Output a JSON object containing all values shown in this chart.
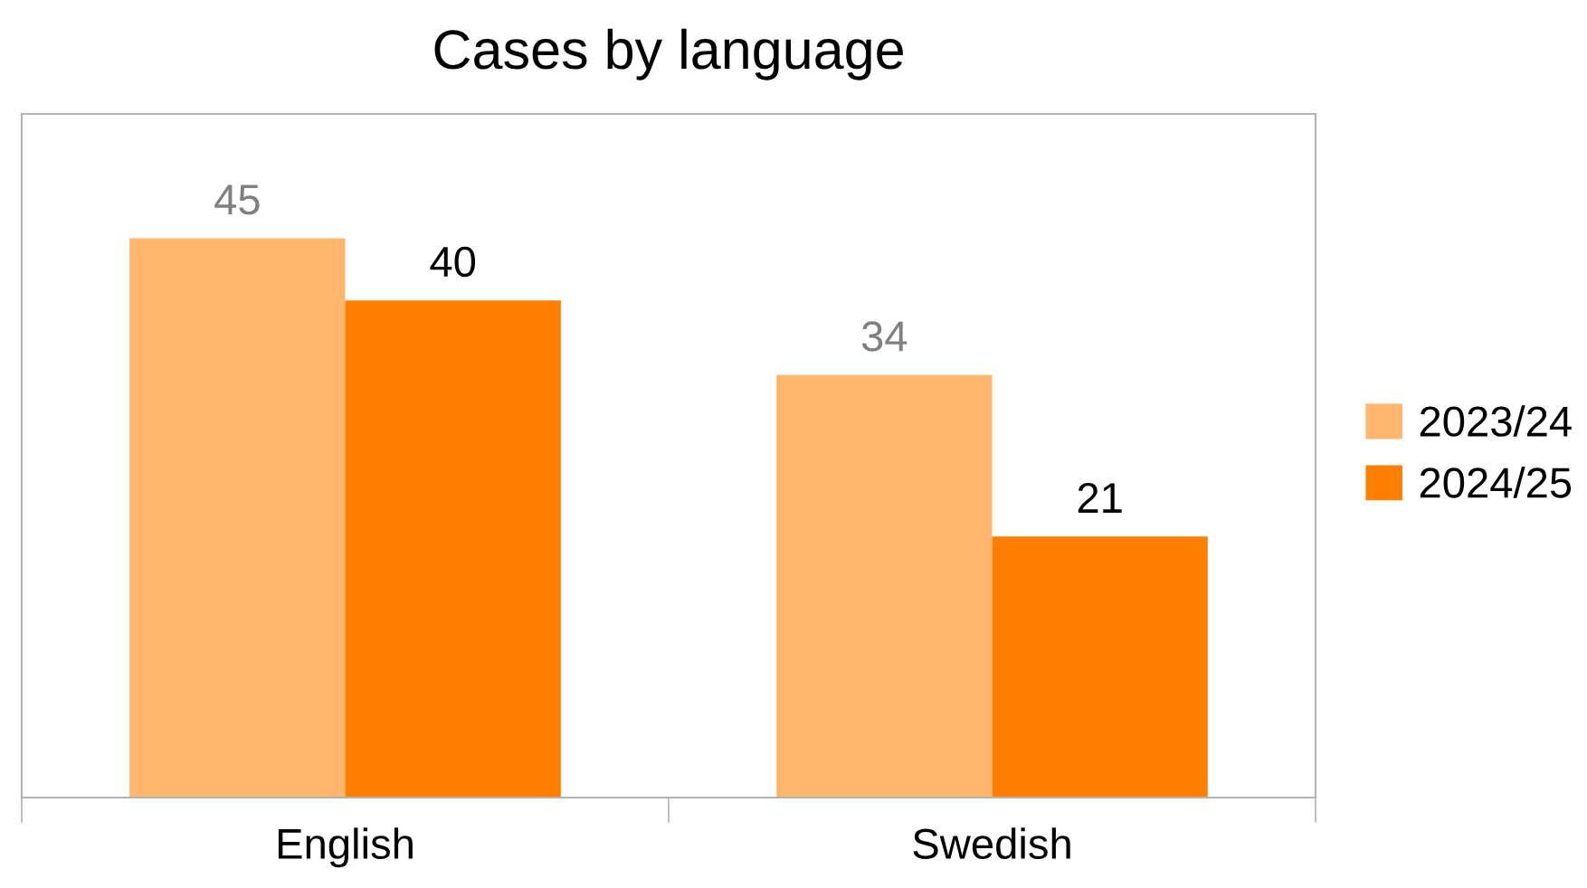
{
  "chart_data": {
    "type": "bar",
    "title": "Cases by language",
    "categories": [
      "English",
      "Swedish"
    ],
    "series": [
      {
        "name": "2023/24",
        "color": "#ffb66c",
        "values": [
          45,
          34
        ]
      },
      {
        "name": "2024/25",
        "color": "#ff8000",
        "values": [
          40,
          21
        ]
      }
    ],
    "ylim": [
      0,
      55
    ],
    "data_labels": true,
    "legend": "right",
    "grid": false
  }
}
